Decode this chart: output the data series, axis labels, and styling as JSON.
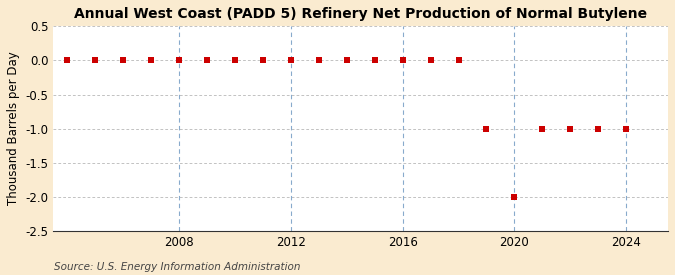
{
  "title": "Annual West Coast (PADD 5) Refinery Net Production of Normal Butylene",
  "ylabel": "Thousand Barrels per Day",
  "source": "Source: U.S. Energy Information Administration",
  "background_color": "#faebd0",
  "plot_background_color": "#ffffff",
  "grid_color": "#aaaaaa",
  "vgrid_color": "#88aacc",
  "marker_color": "#cc0000",
  "years": [
    2004,
    2005,
    2006,
    2007,
    2008,
    2009,
    2010,
    2011,
    2012,
    2013,
    2014,
    2015,
    2016,
    2017,
    2018,
    2019,
    2020,
    2021,
    2022,
    2023,
    2024
  ],
  "values": [
    0.0,
    0.0,
    0.0,
    0.0,
    0.0,
    0.0,
    0.0,
    0.0,
    0.0,
    0.0,
    0.0,
    0.0,
    0.0,
    0.0,
    0.0,
    -1.0,
    -2.0,
    -1.0,
    -1.0,
    -1.0,
    -1.0
  ],
  "ylim": [
    -2.5,
    0.5
  ],
  "yticks": [
    0.5,
    0.0,
    -0.5,
    -1.0,
    -1.5,
    -2.0,
    -2.5
  ],
  "xlim": [
    2003.5,
    2025.5
  ],
  "xticks": [
    2008,
    2012,
    2016,
    2020,
    2024
  ],
  "vgrid_years": [
    2008,
    2012,
    2016,
    2020,
    2024
  ],
  "title_fontsize": 10,
  "axis_fontsize": 8.5,
  "source_fontsize": 7.5
}
